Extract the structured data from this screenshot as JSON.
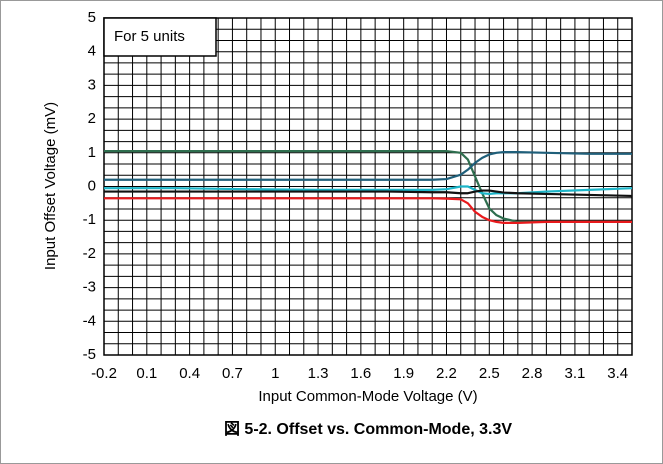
{
  "chart_data": {
    "type": "line",
    "title": "図 5-2. Offset vs. Common-Mode, 3.3V",
    "annotation": "For 5 units",
    "x_label": "Input Common-Mode Voltage (V)",
    "y_label": "Input Offset Voltage (mV)",
    "x": [
      -0.2,
      0.3,
      0.8,
      1.3,
      1.8,
      2.1,
      2.2,
      2.3,
      2.35,
      2.4,
      2.45,
      2.5,
      2.55,
      2.6,
      2.7,
      2.9,
      3.2,
      3.5
    ],
    "series": [
      {
        "color": "#2e6e4e",
        "values": [
          1.05,
          1.05,
          1.05,
          1.05,
          1.05,
          1.05,
          1.05,
          1.0,
          0.8,
          0.3,
          -0.2,
          -0.65,
          -0.85,
          -0.95,
          -1.05,
          -1.05,
          -1.05,
          -1.05
        ]
      },
      {
        "color": "#1f5f7a",
        "values": [
          0.2,
          0.2,
          0.2,
          0.2,
          0.2,
          0.2,
          0.22,
          0.35,
          0.5,
          0.7,
          0.85,
          0.95,
          1.0,
          1.02,
          1.02,
          1.0,
          0.97,
          0.97
        ]
      },
      {
        "color": "#1cb5c8",
        "values": [
          -0.05,
          -0.05,
          -0.08,
          -0.1,
          -0.1,
          -0.1,
          -0.08,
          0.0,
          0.0,
          -0.1,
          -0.2,
          -0.22,
          -0.2,
          -0.2,
          -0.2,
          -0.15,
          -0.1,
          -0.05
        ]
      },
      {
        "color": "#111111",
        "values": [
          -0.15,
          -0.15,
          -0.15,
          -0.15,
          -0.15,
          -0.17,
          -0.17,
          -0.2,
          -0.2,
          -0.15,
          -0.12,
          -0.12,
          -0.15,
          -0.18,
          -0.2,
          -0.22,
          -0.25,
          -0.28
        ]
      },
      {
        "color": "#e8191c",
        "values": [
          -0.35,
          -0.35,
          -0.35,
          -0.35,
          -0.35,
          -0.35,
          -0.36,
          -0.38,
          -0.5,
          -0.75,
          -0.9,
          -1.0,
          -1.05,
          -1.08,
          -1.08,
          -1.05,
          -1.05,
          -1.05
        ]
      }
    ],
    "xlim": [
      -0.2,
      3.5
    ],
    "ylim": [
      -5,
      5
    ],
    "xticks": [
      -0.2,
      0.1,
      0.4,
      0.7,
      1,
      1.3,
      1.6,
      1.9,
      2.2,
      2.5,
      2.8,
      3.1,
      3.4
    ],
    "yticks": [
      -5,
      -4,
      -3,
      -2,
      -1,
      0,
      1,
      2,
      3,
      4,
      5
    ],
    "grid": true
  }
}
